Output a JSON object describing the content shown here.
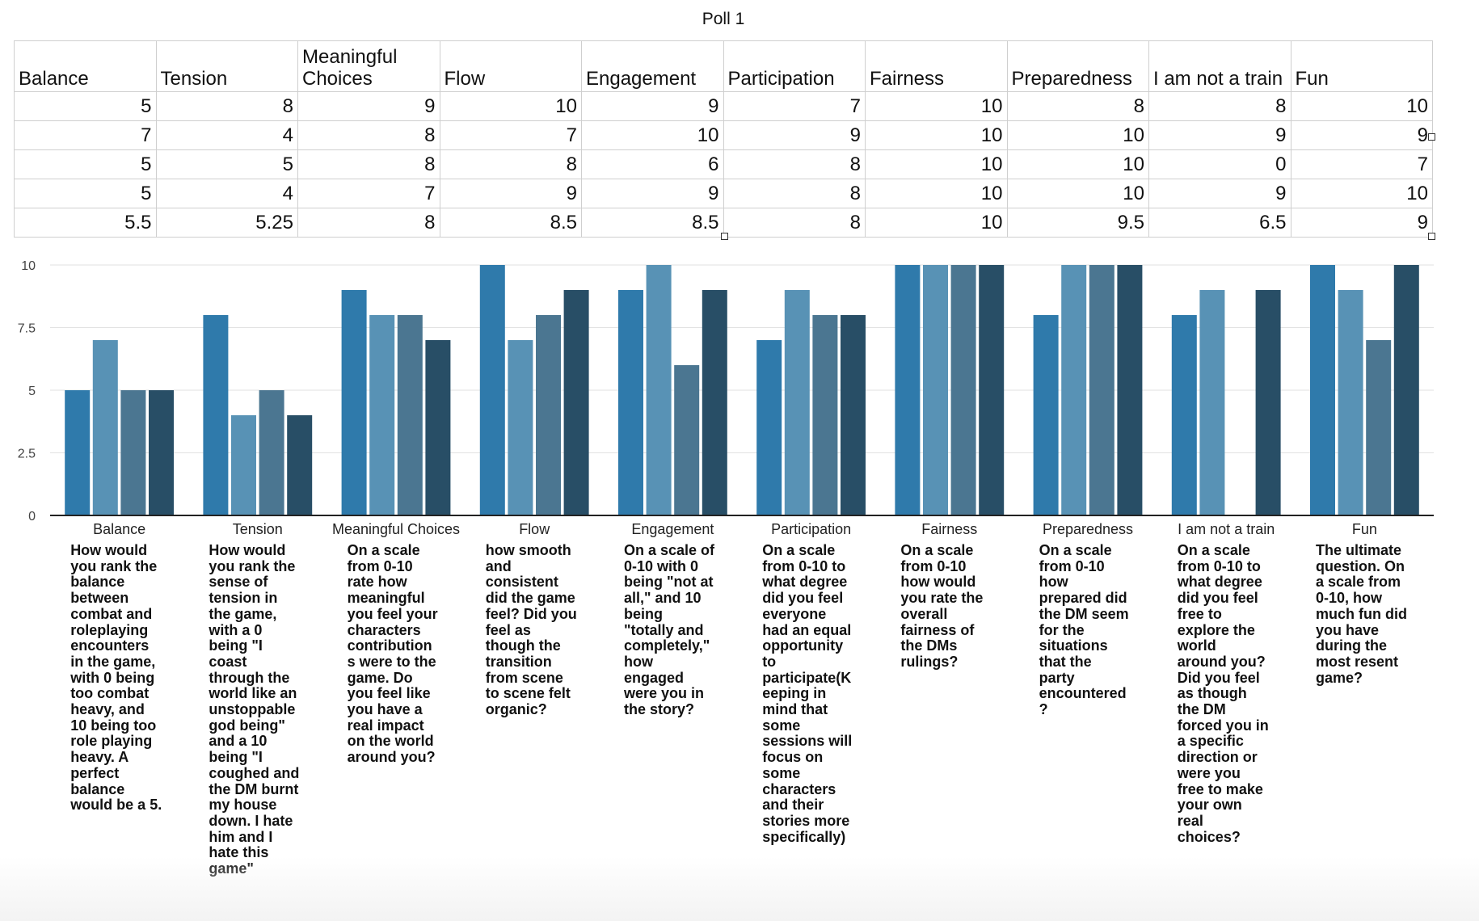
{
  "sheet_title": "Poll 1",
  "table": {
    "headers": [
      "Balance",
      "Tension",
      "Meaningful Choices",
      "Flow",
      "Engagement",
      "Participation",
      "Fairness",
      "Preparedness",
      "I am not a train",
      "Fun"
    ],
    "rows": [
      [
        "5",
        "8",
        "9",
        "10",
        "9",
        "7",
        "10",
        "8",
        "8",
        "10"
      ],
      [
        "7",
        "4",
        "8",
        "7",
        "10",
        "9",
        "10",
        "10",
        "9",
        "9"
      ],
      [
        "5",
        "5",
        "8",
        "8",
        "6",
        "8",
        "10",
        "10",
        "0",
        "7"
      ],
      [
        "5",
        "4",
        "7",
        "9",
        "9",
        "8",
        "10",
        "10",
        "9",
        "10"
      ],
      [
        "5.5",
        "5.25",
        "8",
        "8.5",
        "8.5",
        "8",
        "10",
        "9.5",
        "6.5",
        "9"
      ]
    ]
  },
  "chart_data": {
    "type": "bar",
    "categories": [
      "Balance",
      "Tension",
      "Meaningful Choices",
      "Flow",
      "Engagement",
      "Participation",
      "Fairness",
      "Preparedness",
      "I am not a train",
      "Fun"
    ],
    "series": [
      {
        "values": [
          5,
          8,
          9,
          10,
          9,
          7,
          10,
          8,
          8,
          10
        ],
        "color": "#2f7aab"
      },
      {
        "values": [
          7,
          4,
          8,
          7,
          10,
          9,
          10,
          10,
          9,
          9
        ],
        "color": "#5892b5"
      },
      {
        "values": [
          5,
          5,
          8,
          8,
          6,
          8,
          10,
          10,
          0,
          7
        ],
        "color": "#4b7691"
      },
      {
        "values": [
          5,
          4,
          7,
          9,
          9,
          8,
          10,
          10,
          9,
          10
        ],
        "color": "#284e66"
      }
    ],
    "ylim": [
      0,
      10
    ],
    "yticks": [
      0,
      2.5,
      5,
      7.5,
      10
    ],
    "ytick_labels": [
      "0",
      "2.5",
      "5",
      "7.5",
      "10"
    ],
    "grid": true,
    "legend": "none",
    "descriptions": [
      "How would\nyou rank the\nbalance\nbetween\ncombat and\nroleplaying\nencounters\nin the game,\nwith 0 being\ntoo combat\nheavy, and\n10 being too\nrole playing\nheavy. A\nperfect\nbalance\nwould be a 5.",
      "How would\nyou rank the\nsense of\ntension in\nthe game,\nwith a 0\nbeing \"I\ncoast\nthrough the\nworld like an\nunstoppable\ngod being\"\nand a 10\nbeing \"I\ncoughed and\nthe DM burnt\nmy house\ndown. I hate\nhim and I\nhate this\ngame\"",
      "On a scale\nfrom 0-10\nrate how\nmeaningful\nyou feel your\ncharacters\ncontribution\ns were to the\ngame. Do\nyou feel like\nyou have a\nreal impact\non the world\naround you?",
      "how smooth\nand\nconsistent\ndid the game\nfeel? Did you\nfeel as\nthough the\ntransition\nfrom scene\nto scene felt\norganic?",
      "On a scale of\n0-10 with 0\nbeing \"not at\nall,\" and 10\nbeing\n\"totally and\ncompletely,\"\nhow\nengaged\nwere you in\nthe story?",
      "On a scale\nfrom 0-10 to\nwhat degree\ndid you feel\neveryone\nhad an equal\nopportunity\nto\nparticipate(K\neeping in\nmind that\nsome\nsessions will\nfocus on\nsome\ncharacters\nand their\nstories more\nspecifically)",
      "On a scale\nfrom 0-10\nhow would\nyou rate the\noverall\nfairness of\nthe DMs\nrulings?",
      "On a scale\nfrom 0-10\nhow\nprepared did\nthe DM seem\nfor the\nsituations\nthat the\nparty\nencountered\n?",
      "On a scale\nfrom 0-10 to\nwhat degree\ndid you feel\nfree to\nexplore the\nworld\naround you?\nDid you feel\nas though\nthe DM\nforced you in\na specific\ndirection or\nwere you\nfree to make\nyour own\nreal\nchoices?",
      "The ultimate\nquestion. On\na scale from\n0-10, how\nmuch fun did\nyou have\nduring the\nmost resent\ngame?"
    ]
  }
}
